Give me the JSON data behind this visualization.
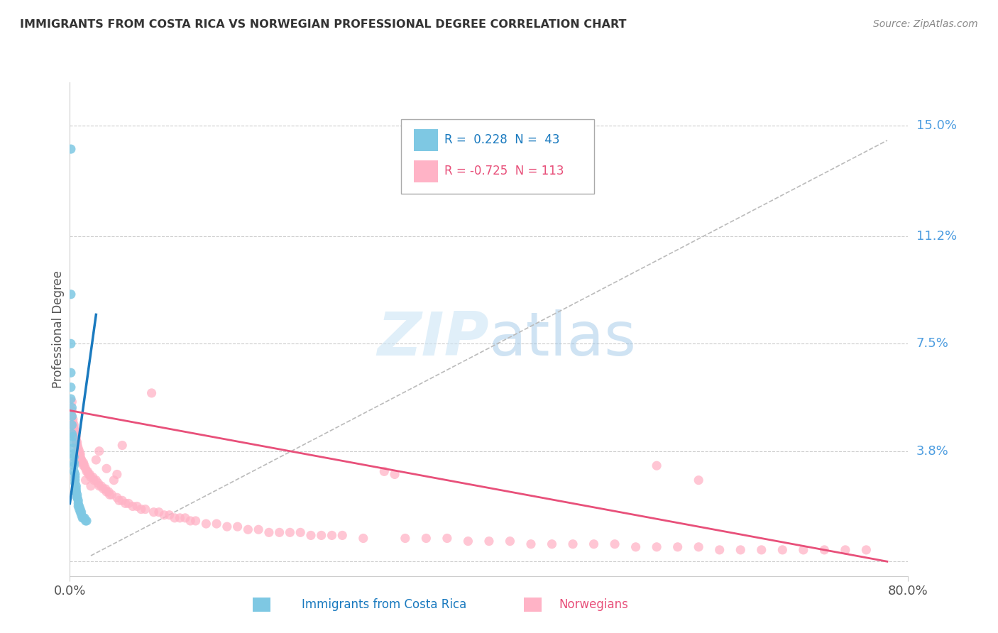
{
  "title": "IMMIGRANTS FROM COSTA RICA VS NORWEGIAN PROFESSIONAL DEGREE CORRELATION CHART",
  "source": "Source: ZipAtlas.com",
  "ylabel": "Professional Degree",
  "xlim": [
    0.0,
    0.8
  ],
  "ylim": [
    -0.005,
    0.165
  ],
  "ytick_positions": [
    0.0,
    0.038,
    0.075,
    0.112,
    0.15
  ],
  "ytick_labels": [
    "",
    "3.8%",
    "7.5%",
    "11.2%",
    "15.0%"
  ],
  "color_blue": "#7ec8e3",
  "color_pink": "#ffb3c6",
  "color_blue_line": "#1a7abf",
  "color_pink_line": "#e8507a",
  "blue_scatter": [
    [
      0.001,
      0.142
    ],
    [
      0.001,
      0.092
    ],
    [
      0.001,
      0.075
    ],
    [
      0.001,
      0.065
    ],
    [
      0.001,
      0.06
    ],
    [
      0.001,
      0.056
    ],
    [
      0.002,
      0.053
    ],
    [
      0.002,
      0.05
    ],
    [
      0.002,
      0.047
    ],
    [
      0.002,
      0.044
    ],
    [
      0.003,
      0.043
    ],
    [
      0.003,
      0.041
    ],
    [
      0.003,
      0.039
    ],
    [
      0.003,
      0.037
    ],
    [
      0.004,
      0.036
    ],
    [
      0.004,
      0.034
    ],
    [
      0.004,
      0.033
    ],
    [
      0.004,
      0.031
    ],
    [
      0.005,
      0.03
    ],
    [
      0.005,
      0.029
    ],
    [
      0.005,
      0.028
    ],
    [
      0.005,
      0.027
    ],
    [
      0.006,
      0.026
    ],
    [
      0.006,
      0.025
    ],
    [
      0.006,
      0.024
    ],
    [
      0.006,
      0.024
    ],
    [
      0.007,
      0.023
    ],
    [
      0.007,
      0.022
    ],
    [
      0.007,
      0.022
    ],
    [
      0.008,
      0.021
    ],
    [
      0.008,
      0.02
    ],
    [
      0.008,
      0.019
    ],
    [
      0.009,
      0.019
    ],
    [
      0.009,
      0.018
    ],
    [
      0.01,
      0.018
    ],
    [
      0.01,
      0.017
    ],
    [
      0.011,
      0.017
    ],
    [
      0.011,
      0.016
    ],
    [
      0.012,
      0.015
    ],
    [
      0.013,
      0.015
    ],
    [
      0.014,
      0.015
    ],
    [
      0.015,
      0.014
    ],
    [
      0.016,
      0.014
    ]
  ],
  "pink_scatter": [
    [
      0.002,
      0.055
    ],
    [
      0.002,
      0.052
    ],
    [
      0.002,
      0.05
    ],
    [
      0.003,
      0.049
    ],
    [
      0.003,
      0.048
    ],
    [
      0.003,
      0.047
    ],
    [
      0.004,
      0.047
    ],
    [
      0.004,
      0.046
    ],
    [
      0.004,
      0.045
    ],
    [
      0.005,
      0.045
    ],
    [
      0.005,
      0.044
    ],
    [
      0.005,
      0.043
    ],
    [
      0.006,
      0.043
    ],
    [
      0.006,
      0.042
    ],
    [
      0.006,
      0.041
    ],
    [
      0.007,
      0.041
    ],
    [
      0.007,
      0.04
    ],
    [
      0.007,
      0.04
    ],
    [
      0.008,
      0.039
    ],
    [
      0.008,
      0.038
    ],
    [
      0.009,
      0.038
    ],
    [
      0.009,
      0.037
    ],
    [
      0.01,
      0.037
    ],
    [
      0.01,
      0.036
    ],
    [
      0.011,
      0.035
    ],
    [
      0.011,
      0.035
    ],
    [
      0.012,
      0.034
    ],
    [
      0.013,
      0.034
    ],
    [
      0.013,
      0.033
    ],
    [
      0.014,
      0.033
    ],
    [
      0.015,
      0.032
    ],
    [
      0.016,
      0.031
    ],
    [
      0.017,
      0.031
    ],
    [
      0.018,
      0.03
    ],
    [
      0.019,
      0.03
    ],
    [
      0.02,
      0.029
    ],
    [
      0.022,
      0.029
    ],
    [
      0.023,
      0.028
    ],
    [
      0.025,
      0.028
    ],
    [
      0.027,
      0.027
    ],
    [
      0.028,
      0.026
    ],
    [
      0.03,
      0.026
    ],
    [
      0.032,
      0.025
    ],
    [
      0.034,
      0.025
    ],
    [
      0.035,
      0.024
    ],
    [
      0.037,
      0.024
    ],
    [
      0.038,
      0.023
    ],
    [
      0.04,
      0.023
    ],
    [
      0.042,
      0.028
    ],
    [
      0.045,
      0.022
    ],
    [
      0.047,
      0.021
    ],
    [
      0.05,
      0.021
    ],
    [
      0.053,
      0.02
    ],
    [
      0.056,
      0.02
    ],
    [
      0.06,
      0.019
    ],
    [
      0.064,
      0.019
    ],
    [
      0.068,
      0.018
    ],
    [
      0.072,
      0.018
    ],
    [
      0.078,
      0.058
    ],
    [
      0.08,
      0.017
    ],
    [
      0.085,
      0.017
    ],
    [
      0.09,
      0.016
    ],
    [
      0.095,
      0.016
    ],
    [
      0.1,
      0.015
    ],
    [
      0.105,
      0.015
    ],
    [
      0.11,
      0.015
    ],
    [
      0.115,
      0.014
    ],
    [
      0.12,
      0.014
    ],
    [
      0.13,
      0.013
    ],
    [
      0.14,
      0.013
    ],
    [
      0.15,
      0.012
    ],
    [
      0.16,
      0.012
    ],
    [
      0.17,
      0.011
    ],
    [
      0.18,
      0.011
    ],
    [
      0.19,
      0.01
    ],
    [
      0.2,
      0.01
    ],
    [
      0.21,
      0.01
    ],
    [
      0.22,
      0.01
    ],
    [
      0.23,
      0.009
    ],
    [
      0.24,
      0.009
    ],
    [
      0.25,
      0.009
    ],
    [
      0.26,
      0.009
    ],
    [
      0.28,
      0.008
    ],
    [
      0.3,
      0.031
    ],
    [
      0.31,
      0.03
    ],
    [
      0.025,
      0.035
    ],
    [
      0.035,
      0.032
    ],
    [
      0.045,
      0.03
    ],
    [
      0.32,
      0.008
    ],
    [
      0.34,
      0.008
    ],
    [
      0.36,
      0.008
    ],
    [
      0.38,
      0.007
    ],
    [
      0.4,
      0.007
    ],
    [
      0.42,
      0.007
    ],
    [
      0.44,
      0.006
    ],
    [
      0.46,
      0.006
    ],
    [
      0.48,
      0.006
    ],
    [
      0.5,
      0.006
    ],
    [
      0.52,
      0.006
    ],
    [
      0.54,
      0.005
    ],
    [
      0.56,
      0.005
    ],
    [
      0.58,
      0.005
    ],
    [
      0.6,
      0.005
    ],
    [
      0.62,
      0.004
    ],
    [
      0.64,
      0.004
    ],
    [
      0.66,
      0.004
    ],
    [
      0.68,
      0.004
    ],
    [
      0.7,
      0.004
    ],
    [
      0.72,
      0.004
    ],
    [
      0.74,
      0.004
    ],
    [
      0.76,
      0.004
    ],
    [
      0.56,
      0.033
    ],
    [
      0.6,
      0.028
    ],
    [
      0.015,
      0.028
    ],
    [
      0.02,
      0.026
    ],
    [
      0.028,
      0.038
    ],
    [
      0.05,
      0.04
    ]
  ],
  "blue_line_x": [
    0.0,
    0.025
  ],
  "blue_line_y": [
    0.02,
    0.085
  ],
  "pink_line_x": [
    0.0,
    0.78
  ],
  "pink_line_y": [
    0.052,
    0.0
  ],
  "grey_line_x": [
    0.02,
    0.78
  ],
  "grey_line_y": [
    0.002,
    0.145
  ]
}
